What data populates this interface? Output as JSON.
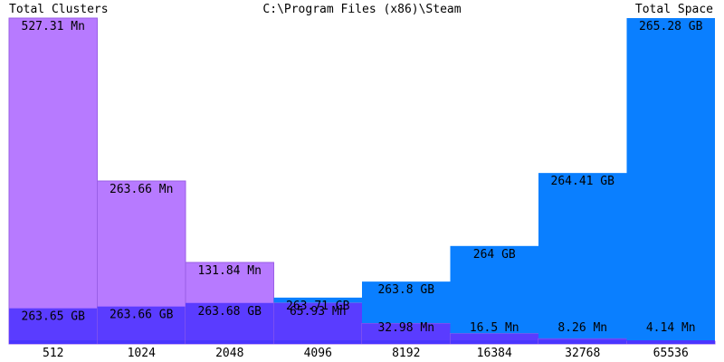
{
  "header": {
    "left_title": "Total Clusters",
    "center_title": "C:\\Program Files (x86)\\Steam",
    "right_title": "Total Space"
  },
  "chart_data": {
    "type": "bar",
    "xlabel": "",
    "ylabel": "",
    "categories": [
      "512",
      "1024",
      "2048",
      "4096",
      "8192",
      "16384",
      "32768",
      "65536"
    ],
    "series": [
      {
        "name": "Total Clusters",
        "values": [
          527.31,
          263.66,
          131.84,
          65.93,
          32.98,
          16.5,
          8.26,
          4.14
        ],
        "labels": [
          "527.31 Mn",
          "263.66 Mn",
          "131.84 Mn",
          "65.93 Mn",
          "32.98 Mn",
          "16.5 Mn",
          "8.26 Mn",
          "4.14 Mn"
        ]
      },
      {
        "name": "Total Space",
        "values": [
          263.65,
          263.66,
          263.68,
          263.71,
          263.8,
          264,
          264.41,
          265.28
        ],
        "labels": [
          "263.65 GB",
          "263.66 GB",
          "263.68 GB",
          "263.71 GB",
          "263.8 GB",
          "264 GB",
          "264.41 GB",
          "265.28 GB"
        ]
      }
    ],
    "colors": {
      "clusters": "#b77aff",
      "clusters_border": "#9a5fe6",
      "space": "#0a7fff",
      "overlap": "#5a3cff",
      "baseline": "#4a35ff"
    }
  }
}
